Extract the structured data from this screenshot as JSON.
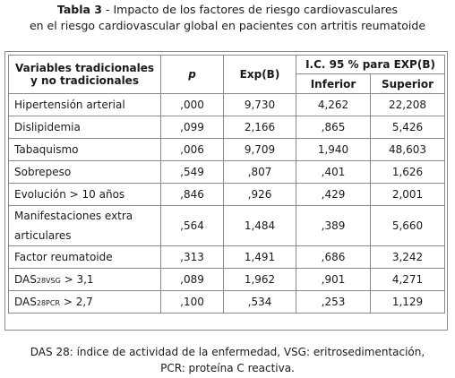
{
  "caption": {
    "label": "Tabla 3",
    "separator": " - ",
    "line1_rest": "Impacto de los factores de riesgo cardiovasculares",
    "line2": "en el riesgo cardiovascular global en pacientes con artritis reumatoide"
  },
  "table": {
    "headers": {
      "variables": "Variables tradicionales y no tradicionales",
      "p": "p",
      "exp": "Exp(B)",
      "ci": "I.C. 95 % para EXP(B)",
      "lower": "Inferior",
      "upper": "Superior"
    },
    "rows": [
      {
        "var": "Hipertensión arterial",
        "p": ",000",
        "exp": "9,730",
        "lower": "4,262",
        "upper": "22,208"
      },
      {
        "var": "Dislipidemia",
        "p": ",099",
        "exp": "2,166",
        "lower": ",865",
        "upper": "5,426"
      },
      {
        "var": "Tabaquismo",
        "p": ",006",
        "exp": "9,709",
        "lower": "1,940",
        "upper": "48,603"
      },
      {
        "var": "Sobrepeso",
        "p": ",549",
        "exp": ",807",
        "lower": ",401",
        "upper": "1,626"
      },
      {
        "var": "Evolución > 10 años",
        "p": ",846",
        "exp": ",926",
        "lower": ",429",
        "upper": "2,001"
      },
      {
        "var_line1": "Manifestaciones extra",
        "var_line2": "articulares",
        "p": ",564",
        "exp": "1,484",
        "lower": ",389",
        "upper": "5,660"
      },
      {
        "var": "Factor reumatoide",
        "p": ",313",
        "exp": "1,491",
        "lower": ",686",
        "upper": "3,242"
      },
      {
        "var_main": "DAS",
        "var_sub": "28VSG",
        "var_tail": " > 3,1",
        "p": ",089",
        "exp": "1,962",
        "lower": ",901",
        "upper": "4,271"
      },
      {
        "var_main": "DAS",
        "var_sub": "28PCR",
        "var_tail": " > 2,7",
        "p": ",100",
        "exp": ",534",
        "lower": ",253",
        "upper": "1,129"
      }
    ]
  },
  "footnote": {
    "line1": "DAS 28: índice de actividad de la enfermedad, VSG: eritrosedimentación,",
    "line2": "PCR: proteína C reactiva."
  }
}
